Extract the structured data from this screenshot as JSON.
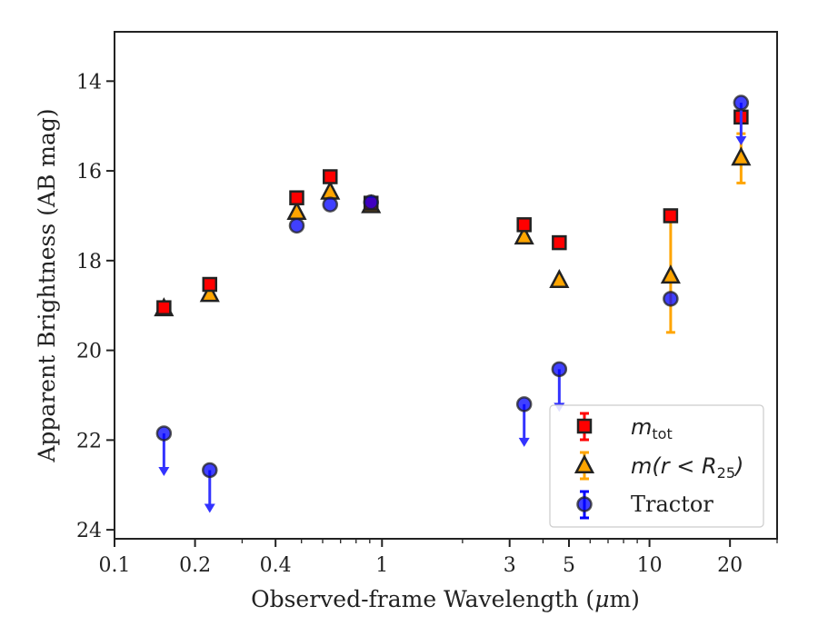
{
  "chart_data": {
    "type": "scatter",
    "title": "",
    "xlabel_prefix": "Observed-frame Wavelength (",
    "xlabel_symbol": "μ",
    "xlabel_suffix": "m)",
    "ylabel": "Apparent Brightness (AB mag)",
    "x_scale": "log",
    "xlim": [
      0.1,
      30
    ],
    "ylim": [
      24.2,
      12.9
    ],
    "y_inverted": true,
    "xticks": [
      0.1,
      0.2,
      0.4,
      1,
      3,
      5,
      10,
      20
    ],
    "xtick_labels": [
      "0.1",
      "0.2",
      "0.4",
      "1",
      "3",
      "5",
      "10",
      "20"
    ],
    "yticks": [
      14,
      16,
      18,
      20,
      22,
      24
    ],
    "ytick_labels": [
      "14",
      "16",
      "18",
      "20",
      "22",
      "24"
    ],
    "grid": false,
    "legend_position": "lower-right",
    "colors": {
      "mtot": "#ff0000",
      "mr25": "#ffa500",
      "tractor": "#0000ff",
      "tractor_arrow": "#3333ff",
      "edge": "#222222"
    },
    "series": [
      {
        "name_base": "m",
        "name_sub": "tot",
        "marker": "square",
        "points": [
          {
            "x": 0.153,
            "y": 19.05,
            "err": 0
          },
          {
            "x": 0.227,
            "y": 18.53,
            "err": 0
          },
          {
            "x": 0.48,
            "y": 16.6,
            "err": 0
          },
          {
            "x": 0.64,
            "y": 16.13,
            "err": 0
          },
          {
            "x": 0.91,
            "y": 16.72,
            "err": 0
          },
          {
            "x": 3.4,
            "y": 17.2,
            "err": 0
          },
          {
            "x": 4.6,
            "y": 17.6,
            "err": 0
          },
          {
            "x": 12.0,
            "y": 17.0,
            "err": 0
          },
          {
            "x": 22.0,
            "y": 14.8,
            "err": 0
          }
        ]
      },
      {
        "name_main": "m(r < R",
        "name_sub": "25",
        "name_end": ")",
        "marker": "triangle",
        "points": [
          {
            "x": 0.153,
            "y": 19.08,
            "err": 0
          },
          {
            "x": 0.227,
            "y": 18.76,
            "err": 0
          },
          {
            "x": 0.48,
            "y": 16.93,
            "err": 0
          },
          {
            "x": 0.64,
            "y": 16.48,
            "err": 0
          },
          {
            "x": 0.91,
            "y": 16.78,
            "err": 0
          },
          {
            "x": 3.4,
            "y": 17.48,
            "err": 0
          },
          {
            "x": 4.6,
            "y": 18.45,
            "err": 0
          },
          {
            "x": 12.0,
            "y": 18.35,
            "err": 1.25
          },
          {
            "x": 22.0,
            "y": 15.72,
            "err": 0.55
          }
        ]
      },
      {
        "name": "Tractor",
        "marker": "circle",
        "points": [
          {
            "x": 0.153,
            "y": 21.85,
            "upper_limit": true
          },
          {
            "x": 0.227,
            "y": 22.67,
            "upper_limit": true
          },
          {
            "x": 0.48,
            "y": 17.22,
            "err": 0
          },
          {
            "x": 0.64,
            "y": 16.75,
            "err": 0
          },
          {
            "x": 0.91,
            "y": 16.7,
            "err": 0
          },
          {
            "x": 3.4,
            "y": 21.2,
            "upper_limit": true
          },
          {
            "x": 4.6,
            "y": 20.42,
            "upper_limit": true
          },
          {
            "x": 12.0,
            "y": 18.85,
            "err": 0
          },
          {
            "x": 22.0,
            "y": 14.48,
            "upper_limit": true
          }
        ]
      }
    ]
  }
}
